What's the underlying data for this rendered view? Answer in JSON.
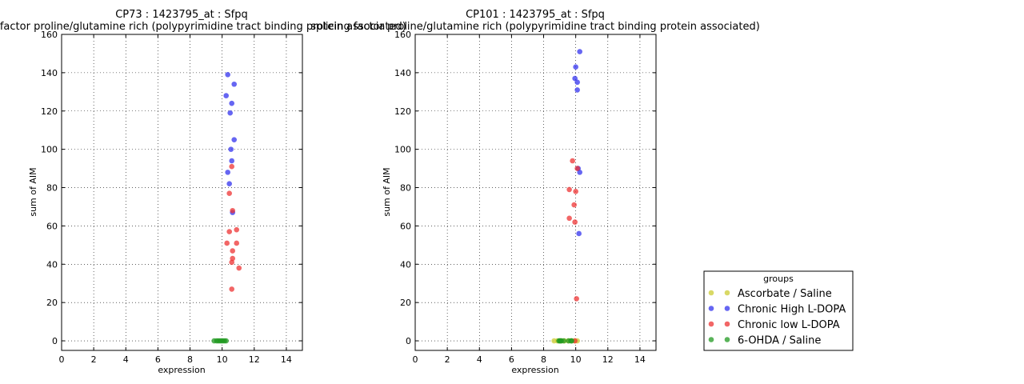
{
  "chart_data": [
    {
      "type": "scatter",
      "title_line1": "CP73 : 1423795_at : Sfpq",
      "title_line2": "splicing factor proline/glutamine rich (polypyrimidine tract binding protein associated)",
      "xlabel": "expression",
      "ylabel": "sum of AIM",
      "xlim": [
        0,
        15
      ],
      "ylim": [
        -5,
        160
      ],
      "xticks": [
        0,
        2,
        4,
        6,
        8,
        10,
        12,
        14
      ],
      "yticks": [
        0,
        20,
        40,
        60,
        80,
        100,
        120,
        140,
        160
      ],
      "grid": true,
      "series": [
        {
          "name": "Ascorbate / Saline",
          "color": "#cccc33",
          "x": [],
          "y": []
        },
        {
          "name": "Chronic High L-DOPA",
          "color": "#3333ee",
          "x": [
            10.35,
            10.75,
            10.25,
            10.6,
            10.5,
            10.75,
            10.55,
            10.6,
            10.35,
            10.45,
            10.65
          ],
          "y": [
            139,
            134,
            128,
            124,
            119,
            105,
            100,
            94,
            88,
            82,
            67
          ]
        },
        {
          "name": "Chronic low L-DOPA",
          "color": "#ee3333",
          "x": [
            10.6,
            10.45,
            10.65,
            10.45,
            10.9,
            10.3,
            10.9,
            10.65,
            10.65,
            10.6,
            11.05,
            10.6
          ],
          "y": [
            91,
            77,
            68,
            57,
            58,
            51,
            51,
            47,
            43,
            41,
            38,
            27
          ]
        },
        {
          "name": "6-OHDA / Saline",
          "color": "#229922",
          "x": [
            9.5,
            9.65,
            9.75,
            9.85,
            9.95,
            10.05,
            10.15,
            10.25
          ],
          "y": [
            0,
            0,
            0,
            0,
            0,
            0,
            0,
            0
          ]
        }
      ]
    },
    {
      "type": "scatter",
      "title_line1": "CP101 : 1423795_at : Sfpq",
      "title_line2": "splicing factor proline/glutamine rich (polypyrimidine tract binding protein associated)",
      "xlabel": "expression",
      "ylabel": "sum of AIM",
      "xlim": [
        0,
        15
      ],
      "ylim": [
        -5,
        160
      ],
      "xticks": [
        0,
        2,
        4,
        6,
        8,
        10,
        12,
        14
      ],
      "yticks": [
        0,
        20,
        40,
        60,
        80,
        100,
        120,
        140,
        160
      ],
      "grid": true,
      "series": [
        {
          "name": "Ascorbate / Saline",
          "color": "#cccc33",
          "x": [
            8.65,
            8.85,
            9.1,
            9.3,
            9.55,
            9.75,
            9.95,
            10.1
          ],
          "y": [
            0,
            0,
            0,
            0,
            0,
            0,
            0,
            0
          ]
        },
        {
          "name": "Chronic High L-DOPA",
          "color": "#3333ee",
          "x": [
            10.25,
            10.0,
            9.95,
            10.1,
            10.1,
            10.15,
            10.25,
            10.2
          ],
          "y": [
            151,
            143,
            137,
            135,
            131,
            90,
            88,
            56
          ]
        },
        {
          "name": "Chronic low L-DOPA",
          "color": "#ee3333",
          "x": [
            9.8,
            10.1,
            9.6,
            10.0,
            9.9,
            9.6,
            9.95,
            10.05,
            9.95
          ],
          "y": [
            94,
            90,
            79,
            78,
            71,
            64,
            62,
            22,
            0
          ]
        },
        {
          "name": "6-OHDA / Saline",
          "color": "#229922",
          "x": [
            8.95,
            9.0,
            9.05,
            9.1,
            9.25,
            9.55,
            9.7,
            9.75
          ],
          "y": [
            0,
            0,
            0,
            0,
            0,
            0,
            0,
            0
          ]
        }
      ]
    }
  ],
  "legend": {
    "title": "groups",
    "placement": "lower-right, outside plots",
    "items": [
      {
        "label": "Ascorbate / Saline",
        "color": "#cccc33"
      },
      {
        "label": "Chronic High L-DOPA",
        "color": "#3333ee"
      },
      {
        "label": "Chronic low L-DOPA",
        "color": "#ee3333"
      },
      {
        "label": "6-OHDA / Saline",
        "color": "#229922"
      }
    ]
  }
}
